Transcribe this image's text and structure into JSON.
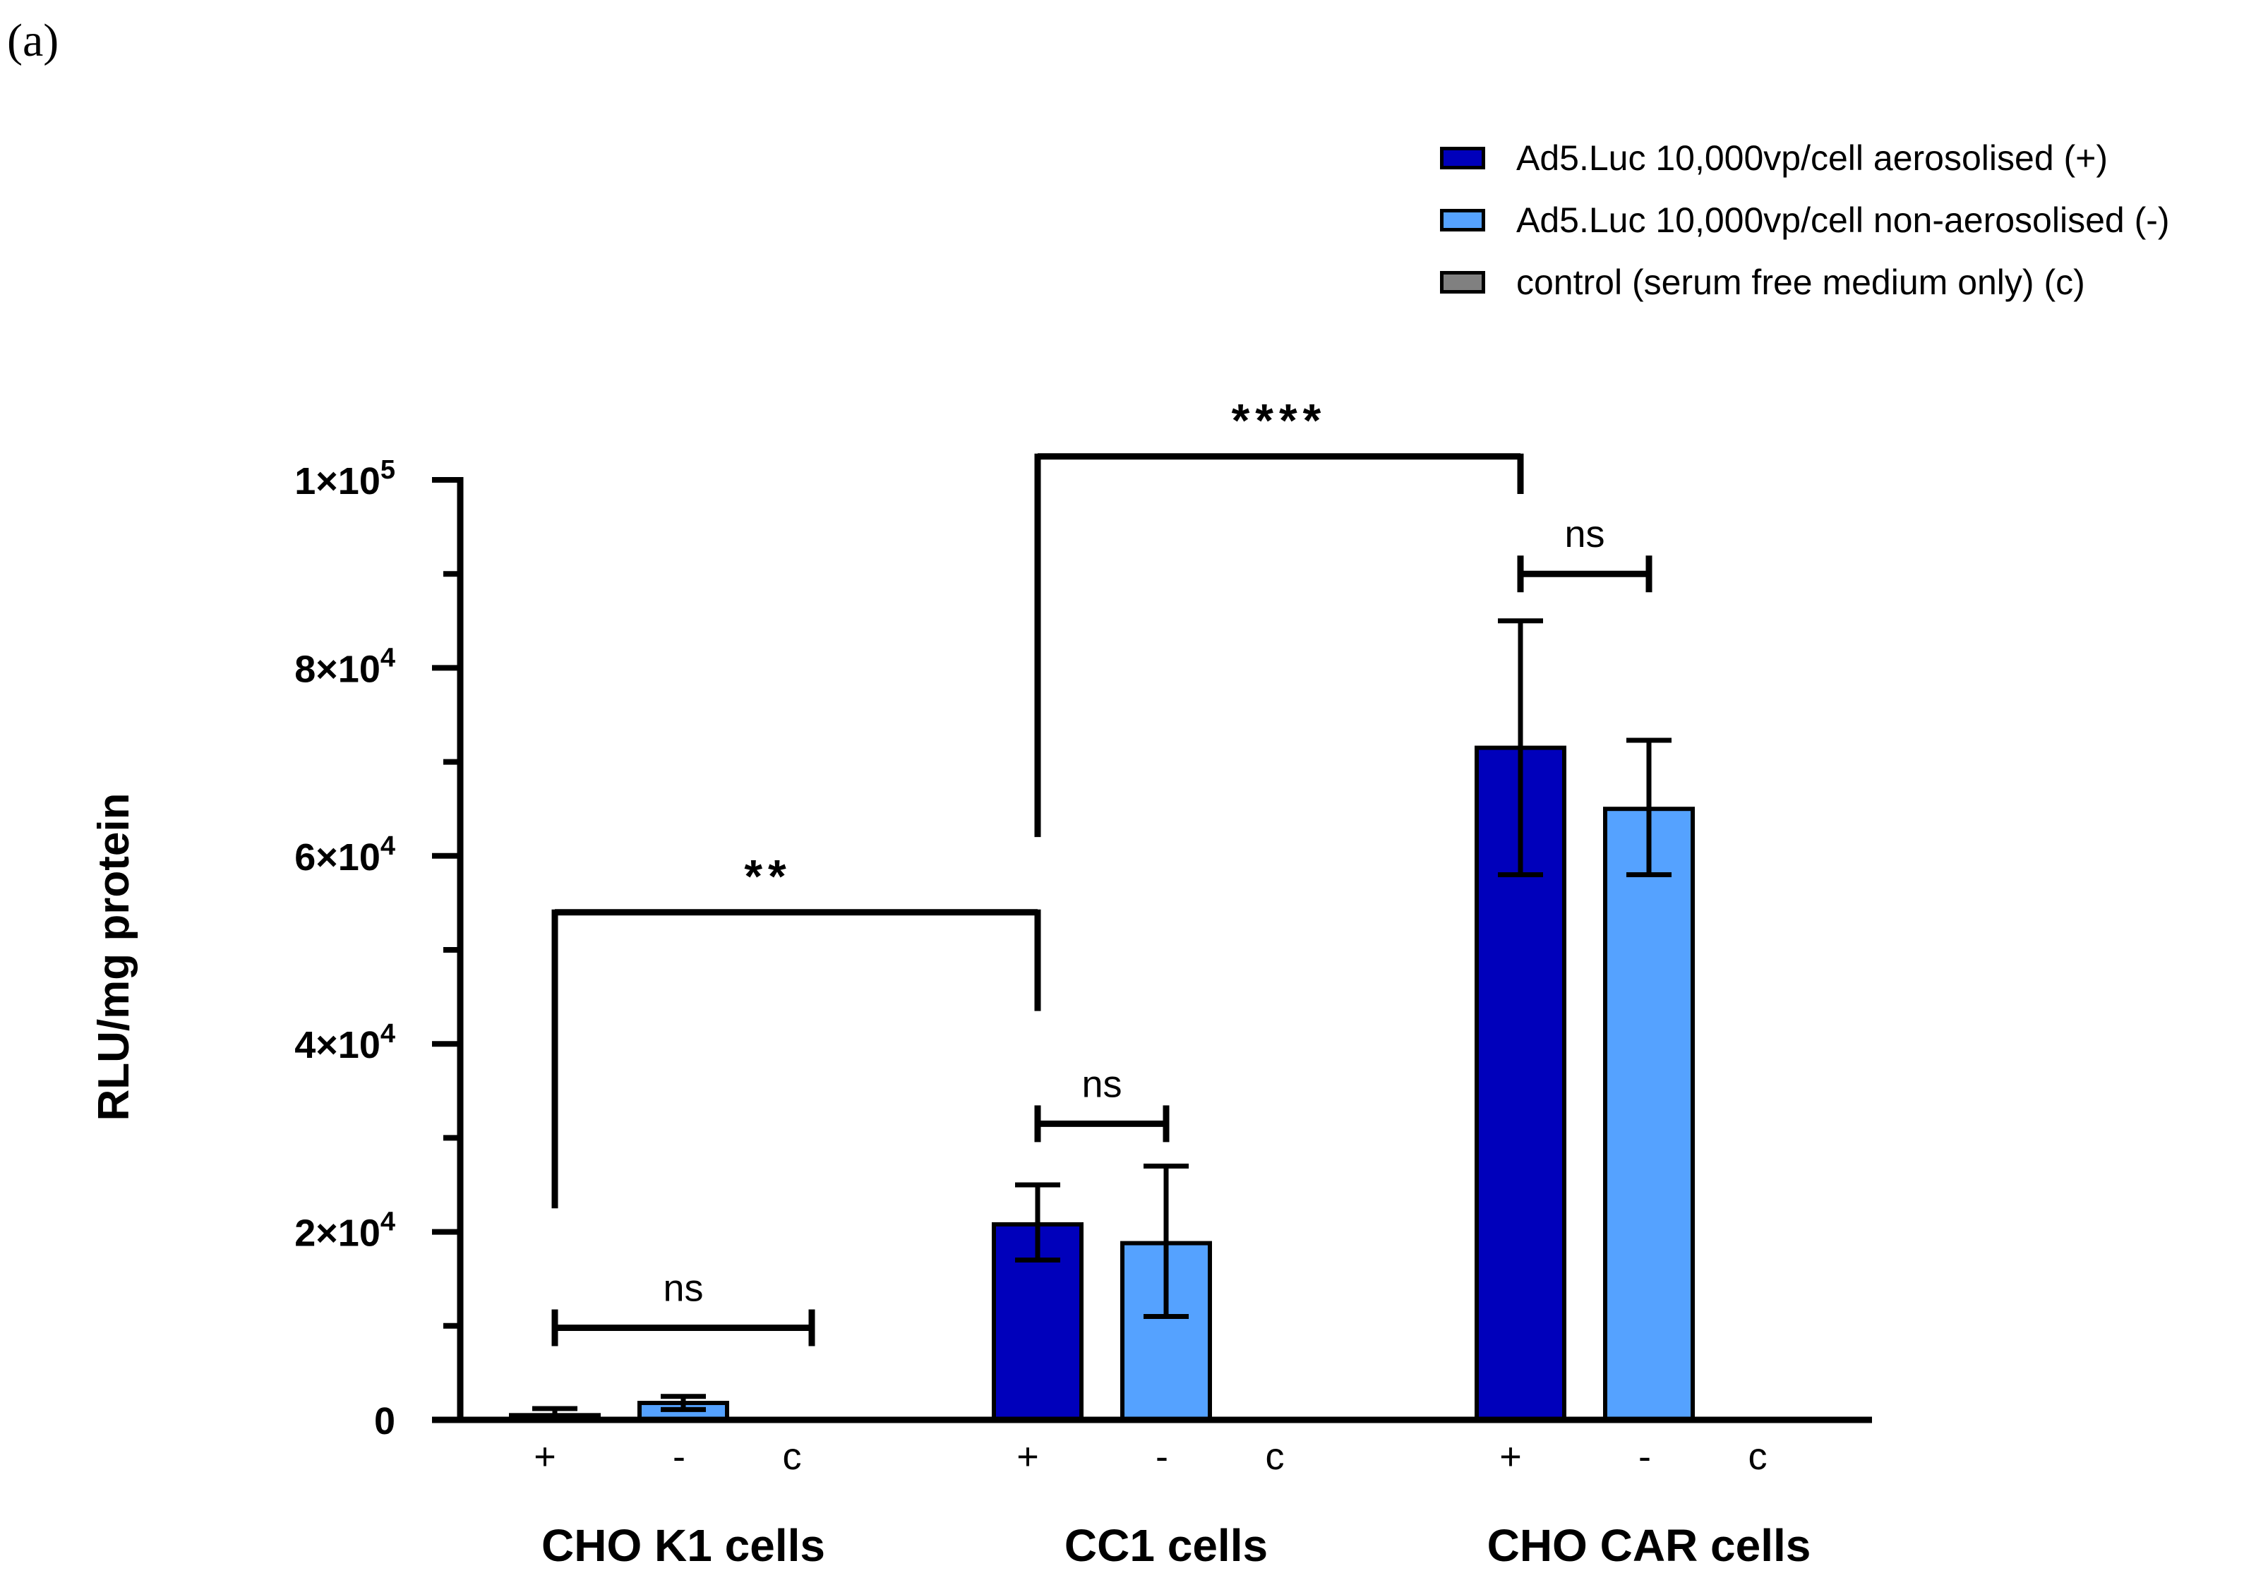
{
  "panel_label": "(a)",
  "colors": {
    "aerosolised": "#0000bb",
    "non_aerosolised": "#55a2ff",
    "control": "#808080",
    "axis": "#000000"
  },
  "chart_data": {
    "type": "bar",
    "title": "",
    "xlabel": "",
    "ylabel": "RLU/mg protein",
    "ylim": [
      0,
      100000
    ],
    "y_ticks": [
      {
        "value": 0,
        "label": "0"
      },
      {
        "value": 20000,
        "mantissa": "2×10",
        "exp": "4"
      },
      {
        "value": 40000,
        "mantissa": "4×10",
        "exp": "4"
      },
      {
        "value": 60000,
        "mantissa": "6×10",
        "exp": "4"
      },
      {
        "value": 80000,
        "mantissa": "8×10",
        "exp": "4"
      },
      {
        "value": 100000,
        "mantissa": "1×10",
        "exp": "5"
      }
    ],
    "minor_tick_step": 10000,
    "categories": [
      "CHO K1 cells",
      "CC1 cells",
      "CHO CAR cells"
    ],
    "bar_labels": [
      "+",
      "-",
      "c"
    ],
    "series": [
      {
        "name": "Ad5.Luc 10,000vp/cell aerosolised (+)",
        "short": "+",
        "color_key": "aerosolised",
        "values": [
          500,
          20800,
          71500
        ],
        "err_high": [
          1200,
          25000,
          85000
        ],
        "err_low": [
          0,
          17000,
          58000
        ]
      },
      {
        "name": "Ad5.Luc 10,000vp/cell non-aerosolised (-)",
        "short": "-",
        "color_key": "non_aerosolised",
        "values": [
          1800,
          18800,
          65000
        ],
        "err_high": [
          2500,
          27000,
          72300
        ],
        "err_low": [
          1100,
          11000,
          58000
        ]
      },
      {
        "name": "control (serum free medium only) (c)",
        "short": "c",
        "color_key": "control",
        "values": [
          0,
          0,
          0
        ],
        "err_high": [
          0,
          0,
          0
        ],
        "err_low": [
          0,
          0,
          0
        ]
      }
    ],
    "legend_position": "top-right",
    "annotations": [
      {
        "text": "ns",
        "type": "inner",
        "group": 0,
        "from_bar": 0,
        "to_bar": 2,
        "level": 9800
      },
      {
        "text": "ns",
        "type": "inner",
        "group": 1,
        "from_bar": 0,
        "to_bar": 1,
        "level": 31500
      },
      {
        "text": "ns",
        "type": "inner",
        "group": 2,
        "from_bar": 0,
        "to_bar": 1,
        "level": 90000
      },
      {
        "text": "**",
        "type": "outer",
        "from_group": 0,
        "to_group": 1,
        "bar": 0,
        "level": 54000,
        "left_drop": 22500,
        "right_drop": 43500
      },
      {
        "text": "****",
        "type": "outer",
        "from_group": 1,
        "to_group": 2,
        "bar": 0,
        "level": 102500,
        "left_drop": 62000,
        "right_drop": 98500
      }
    ]
  }
}
